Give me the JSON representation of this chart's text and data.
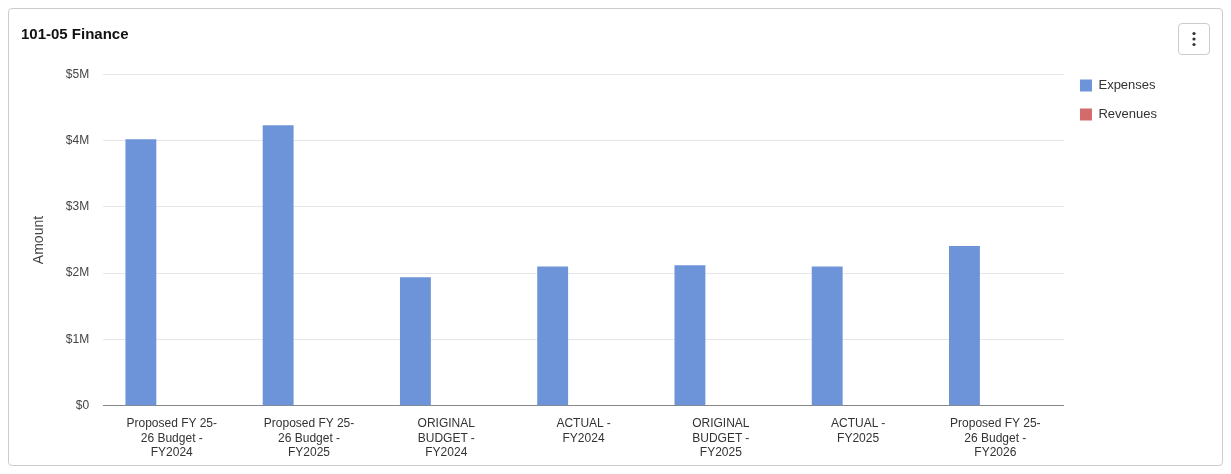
{
  "chart_data": {
    "type": "bar",
    "title": "101-05 Finance",
    "ylabel": "Amount",
    "categories": [
      "Proposed FY 25-26 Budget - FY2024",
      "Proposed FY 25-26 Budget - FY2025",
      "ORIGINAL BUDGET - FY2024",
      "ACTUAL - FY2024",
      "ORIGINAL BUDGET - FY2025",
      "ACTUAL - FY2025",
      "Proposed FY 25-26 Budget - FY2026"
    ],
    "series": [
      {
        "name": "Expenses",
        "color": "#6d94d9",
        "values": [
          4020000,
          4230000,
          1940000,
          2100000,
          2120000,
          2100000,
          2410000
        ]
      },
      {
        "name": "Revenues",
        "color": "#d46b6b",
        "values": [
          0,
          0,
          0,
          0,
          0,
          0,
          0
        ]
      }
    ],
    "ylim": [
      0,
      5000000
    ],
    "yticks": [
      {
        "value": 0,
        "label": "$0"
      },
      {
        "value": 1000000,
        "label": "$1M"
      },
      {
        "value": 2000000,
        "label": "$2M"
      },
      {
        "value": 3000000,
        "label": "$3M"
      },
      {
        "value": 4000000,
        "label": "$4M"
      },
      {
        "value": 5000000,
        "label": "$5M"
      }
    ],
    "grid": "y",
    "legend": "top right"
  }
}
